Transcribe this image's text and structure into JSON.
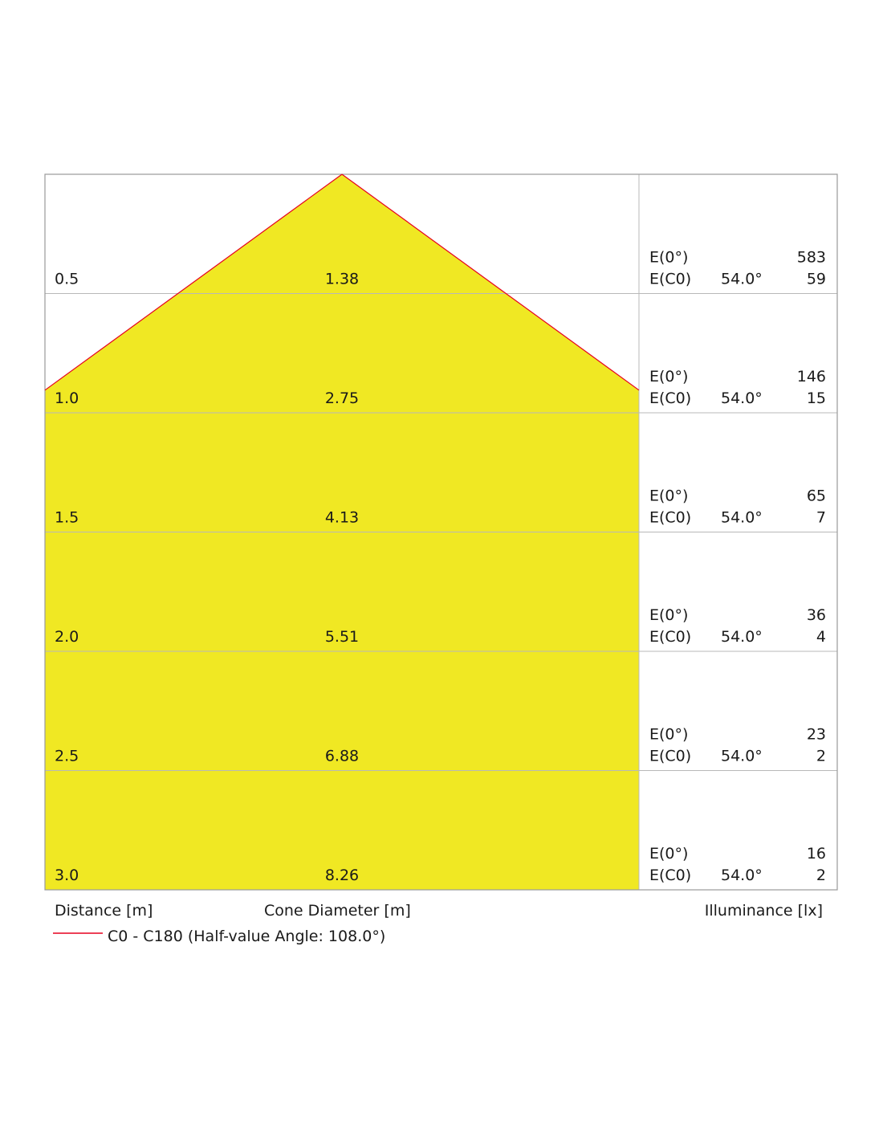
{
  "chart_data": {
    "type": "area",
    "columns": {
      "distance_label": "Distance [m]",
      "diameter_label": "Cone Diameter [m]",
      "illuminance_label": "Illuminance [lx]"
    },
    "legend": {
      "text": "C0 - C180 (Half-value Angle: 108.0°)",
      "color": "#e5001f"
    },
    "colors": {
      "cone_fill": "#f0e823",
      "cone_edge": "#e5001f",
      "grid": "#b8b8b8"
    },
    "half_value_angle_deg": 108.0,
    "rows": [
      {
        "distance": "0.5",
        "diameter": "1.38",
        "e0_label": "E(0°)",
        "e0": "583",
        "ec0_label": "E(C0)",
        "angle": "54.0°",
        "ec0": "59"
      },
      {
        "distance": "1.0",
        "diameter": "2.75",
        "e0_label": "E(0°)",
        "e0": "146",
        "ec0_label": "E(C0)",
        "angle": "54.0°",
        "ec0": "15"
      },
      {
        "distance": "1.5",
        "diameter": "4.13",
        "e0_label": "E(0°)",
        "e0": "65",
        "ec0_label": "E(C0)",
        "angle": "54.0°",
        "ec0": "7"
      },
      {
        "distance": "2.0",
        "diameter": "5.51",
        "e0_label": "E(0°)",
        "e0": "36",
        "ec0_label": "E(C0)",
        "angle": "54.0°",
        "ec0": "4"
      },
      {
        "distance": "2.5",
        "diameter": "6.88",
        "e0_label": "E(0°)",
        "e0": "23",
        "ec0_label": "E(C0)",
        "angle": "54.0°",
        "ec0": "2"
      },
      {
        "distance": "3.0",
        "diameter": "8.26",
        "e0_label": "E(0°)",
        "e0": "16",
        "ec0_label": "E(C0)",
        "angle": "54.0°",
        "ec0": "2"
      }
    ]
  }
}
